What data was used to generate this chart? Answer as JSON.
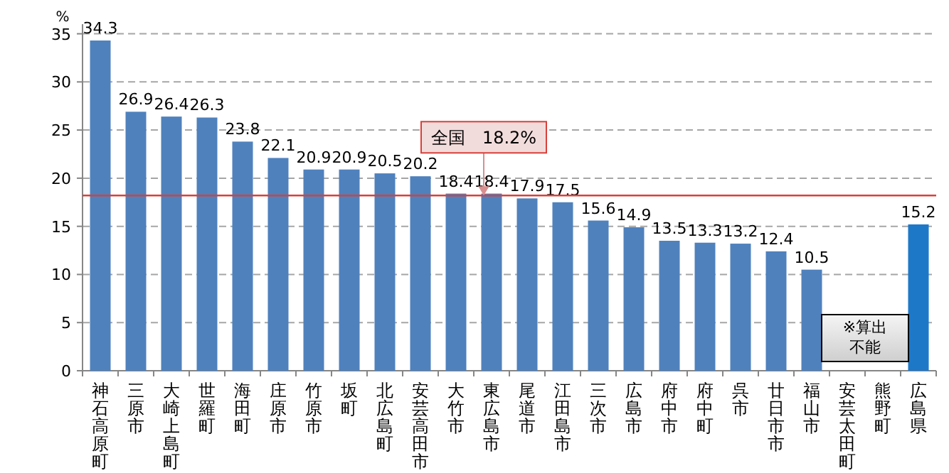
{
  "chart_data": {
    "type": "bar",
    "ylabel": "%",
    "categories": [
      "神石高原町",
      "三原市",
      "大崎上島町",
      "世羅町",
      "海田町",
      "庄原市",
      "竹原市",
      "坂町",
      "北広島町",
      "安芸高田市",
      "大竹市",
      "東広島市",
      "尾道市",
      "江田島市",
      "三次市",
      "広島市",
      "府中市",
      "府中町",
      "呉市",
      "廿日市市",
      "福山市",
      "安芸太田町",
      "熊野町",
      "広島県"
    ],
    "values": [
      34.3,
      26.9,
      26.4,
      26.3,
      23.8,
      22.1,
      20.9,
      20.9,
      20.5,
      20.2,
      18.4,
      18.4,
      17.9,
      17.5,
      15.6,
      14.9,
      13.5,
      13.3,
      13.2,
      12.4,
      10.5,
      null,
      null,
      15.2
    ],
    "colors": [
      "#4f81bd",
      "#4f81bd",
      "#4f81bd",
      "#4f81bd",
      "#4f81bd",
      "#4f81bd",
      "#4f81bd",
      "#4f81bd",
      "#4f81bd",
      "#4f81bd",
      "#4f81bd",
      "#4f81bd",
      "#4f81bd",
      "#4f81bd",
      "#4f81bd",
      "#4f81bd",
      "#4f81bd",
      "#4f81bd",
      "#4f81bd",
      "#4f81bd",
      "#4f81bd",
      null,
      null,
      "#1e78c8"
    ],
    "ylim": [
      0,
      36
    ],
    "yticks": [
      0,
      5,
      10,
      15,
      20,
      25,
      30,
      35
    ],
    "grid": "y",
    "data_labels": true,
    "ref_lines": [
      {
        "axis": "y",
        "value": 18.2,
        "label": "全国　18.2%",
        "color": "#d9403a"
      }
    ],
    "annotations": [
      "※算出不能"
    ]
  }
}
